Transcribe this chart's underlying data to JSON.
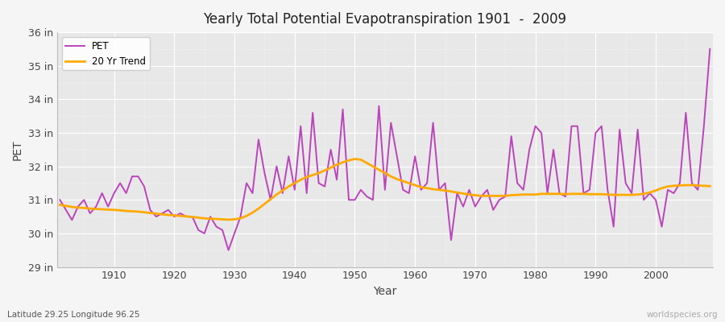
{
  "title": "Yearly Total Potential Evapotranspiration 1901  -  2009",
  "ylabel": "PET",
  "xlabel": "Year",
  "bottom_left_label": "Latitude 29.25 Longitude 96.25",
  "bottom_right_label": "worldspecies.org",
  "pet_color": "#bb44bb",
  "trend_color": "#ffaa00",
  "background_color": "#e8e8e8",
  "fig_background": "#f5f5f5",
  "grid_color": "#cccccc",
  "ylim": [
    29.0,
    36.0
  ],
  "yticks": [
    29,
    30,
    31,
    32,
    33,
    34,
    35,
    36
  ],
  "ytick_labels": [
    "29 in",
    "30 in",
    "31 in",
    "32 in",
    "33 in",
    "34 in",
    "35 in",
    "36 in"
  ],
  "years": [
    1901,
    1902,
    1903,
    1904,
    1905,
    1906,
    1907,
    1908,
    1909,
    1910,
    1911,
    1912,
    1913,
    1914,
    1915,
    1916,
    1917,
    1918,
    1919,
    1920,
    1921,
    1922,
    1923,
    1924,
    1925,
    1926,
    1927,
    1928,
    1929,
    1930,
    1931,
    1932,
    1933,
    1934,
    1935,
    1936,
    1937,
    1938,
    1939,
    1940,
    1941,
    1942,
    1943,
    1944,
    1945,
    1946,
    1947,
    1948,
    1949,
    1950,
    1951,
    1952,
    1953,
    1954,
    1955,
    1956,
    1957,
    1958,
    1959,
    1960,
    1961,
    1962,
    1963,
    1964,
    1965,
    1966,
    1967,
    1968,
    1969,
    1970,
    1971,
    1972,
    1973,
    1974,
    1975,
    1976,
    1977,
    1978,
    1979,
    1980,
    1981,
    1982,
    1983,
    1984,
    1985,
    1986,
    1987,
    1988,
    1989,
    1990,
    1991,
    1992,
    1993,
    1994,
    1995,
    1996,
    1997,
    1998,
    1999,
    2000,
    2001,
    2002,
    2003,
    2004,
    2005,
    2006,
    2007,
    2008,
    2009
  ],
  "pet": [
    31.0,
    30.7,
    30.4,
    30.8,
    31.0,
    30.6,
    30.8,
    31.2,
    30.8,
    31.2,
    31.5,
    31.2,
    31.7,
    31.7,
    31.4,
    30.7,
    30.5,
    30.6,
    30.7,
    30.5,
    30.6,
    30.5,
    30.5,
    30.1,
    30.0,
    30.5,
    30.2,
    30.1,
    29.5,
    30.0,
    30.5,
    31.5,
    31.2,
    32.8,
    31.8,
    31.0,
    32.0,
    31.2,
    32.3,
    31.3,
    33.2,
    31.2,
    33.6,
    31.5,
    31.4,
    32.5,
    31.6,
    33.7,
    31.0,
    31.0,
    31.3,
    31.1,
    31.0,
    33.8,
    31.3,
    33.3,
    32.3,
    31.3,
    31.2,
    32.3,
    31.3,
    31.5,
    33.3,
    31.3,
    31.5,
    29.8,
    31.2,
    30.8,
    31.3,
    30.8,
    31.1,
    31.3,
    30.7,
    31.0,
    31.1,
    32.9,
    31.5,
    31.3,
    32.5,
    33.2,
    33.0,
    31.2,
    32.5,
    31.2,
    31.1,
    33.2,
    33.2,
    31.2,
    31.3,
    33.0,
    33.2,
    31.3,
    30.2,
    33.1,
    31.5,
    31.2,
    33.1,
    31.0,
    31.2,
    31.0,
    30.2,
    31.3,
    31.2,
    31.5,
    33.6,
    31.5,
    31.3,
    33.2,
    35.5
  ],
  "trend": [
    30.85,
    30.82,
    30.79,
    30.77,
    30.76,
    30.74,
    30.73,
    30.72,
    30.71,
    30.7,
    30.69,
    30.67,
    30.66,
    30.65,
    30.63,
    30.61,
    30.59,
    30.57,
    30.55,
    30.54,
    30.52,
    30.51,
    30.49,
    30.47,
    30.45,
    30.44,
    30.43,
    30.42,
    30.41,
    30.42,
    30.45,
    30.52,
    30.62,
    30.74,
    30.88,
    31.02,
    31.16,
    31.28,
    31.4,
    31.5,
    31.6,
    31.68,
    31.74,
    31.8,
    31.88,
    31.96,
    32.05,
    32.12,
    32.18,
    32.22,
    32.2,
    32.1,
    32.0,
    31.9,
    31.8,
    31.7,
    31.62,
    31.56,
    31.5,
    31.44,
    31.38,
    31.35,
    31.32,
    31.3,
    31.28,
    31.25,
    31.22,
    31.19,
    31.16,
    31.14,
    31.12,
    31.12,
    31.12,
    31.12,
    31.12,
    31.14,
    31.15,
    31.16,
    31.16,
    31.16,
    31.18,
    31.18,
    31.18,
    31.18,
    31.17,
    31.18,
    31.18,
    31.18,
    31.17,
    31.17,
    31.17,
    31.16,
    31.15,
    31.15,
    31.15,
    31.15,
    31.16,
    31.18,
    31.22,
    31.28,
    31.35,
    31.4,
    31.42,
    31.43,
    31.44,
    31.44,
    31.43,
    31.42,
    31.41
  ]
}
